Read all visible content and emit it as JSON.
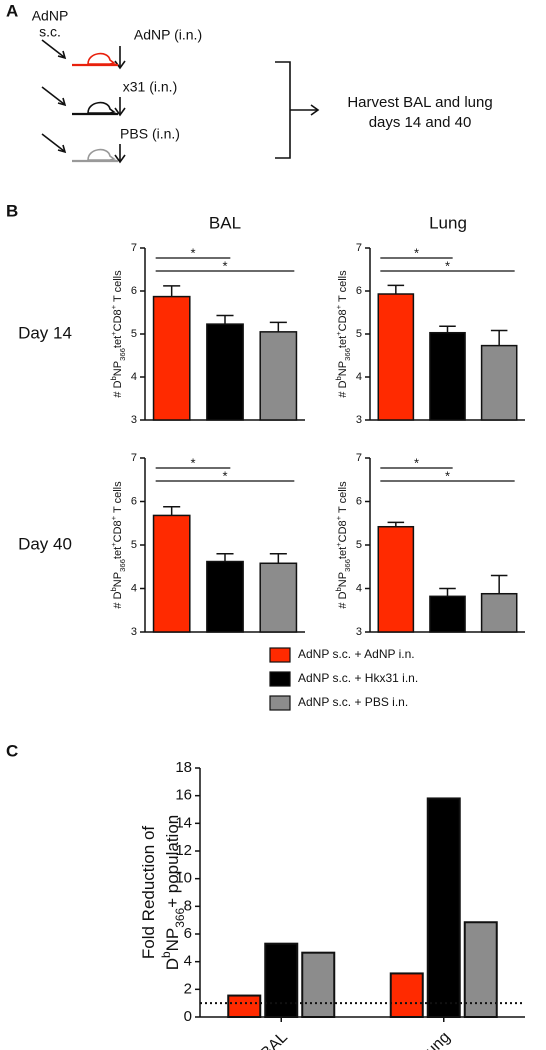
{
  "panel_labels": [
    "A",
    "B",
    "C"
  ],
  "panel_a": {
    "injection": [
      "AdNP",
      "s.c."
    ],
    "challenges": [
      "AdNP (i.n.)",
      "x31 (i.n.)",
      "PBS (i.n.)"
    ],
    "outcome": [
      "Harvest BAL and lung",
      "days 14 and 40"
    ]
  },
  "panel_b": {
    "columns": [
      "BAL",
      "Lung"
    ],
    "rows": [
      "Day 14",
      "Day 40"
    ]
  },
  "chart_data": [
    {
      "type": "bar",
      "categories": [
        null,
        null,
        null
      ],
      "values": [
        5.87,
        5.23,
        5.05
      ],
      "errors": [
        0.25,
        0.2,
        0.22
      ],
      "colors": [
        "#ff2a00",
        "#000000",
        "#8c8c8c"
      ],
      "ylim": [
        3,
        7
      ],
      "yticks": [
        3,
        4,
        5,
        6,
        7
      ],
      "ylabel_parts": [
        "# D",
        "b",
        "NP",
        "366",
        "tet",
        "+",
        "CD8",
        "+",
        " T cells"
      ],
      "annotations": [
        "*",
        "*"
      ]
    },
    {
      "type": "bar",
      "categories": [
        null,
        null,
        null
      ],
      "values": [
        5.93,
        5.03,
        4.73
      ],
      "errors": [
        0.2,
        0.15,
        0.35
      ],
      "colors": [
        "#ff2a00",
        "#000000",
        "#8c8c8c"
      ],
      "ylim": [
        3,
        7
      ],
      "yticks": [
        3,
        4,
        5,
        6,
        7
      ],
      "ylabel_parts": [
        "# D",
        "b",
        "NP",
        "366",
        "tet",
        "+",
        "CD8",
        "+",
        " T cells"
      ],
      "annotations": [
        "*",
        "*"
      ]
    },
    {
      "type": "bar",
      "categories": [
        null,
        null,
        null
      ],
      "values": [
        5.68,
        4.62,
        4.58
      ],
      "errors": [
        0.2,
        0.18,
        0.22
      ],
      "colors": [
        "#ff2a00",
        "#000000",
        "#8c8c8c"
      ],
      "ylim": [
        3,
        7
      ],
      "yticks": [
        3,
        4,
        5,
        6,
        7
      ],
      "ylabel_parts": [
        "# D",
        "b",
        "NP",
        "366",
        "tet",
        "+",
        "CD8",
        "+",
        " T cells"
      ],
      "annotations": [
        "*",
        "*"
      ]
    },
    {
      "type": "bar",
      "categories": [
        null,
        null,
        null
      ],
      "values": [
        5.42,
        3.82,
        3.88
      ],
      "errors": [
        0.1,
        0.18,
        0.42
      ],
      "colors": [
        "#ff2a00",
        "#000000",
        "#8c8c8c"
      ],
      "ylim": [
        3,
        7
      ],
      "yticks": [
        3,
        4,
        5,
        6,
        7
      ],
      "ylabel_parts": [
        "# D",
        "b",
        "NP",
        "366",
        "tet",
        "+",
        "CD8",
        "+",
        " T cells"
      ],
      "annotations": [
        "*",
        "*"
      ]
    },
    {
      "type": "grouped_bar",
      "categories": [
        "BAL",
        "Lung"
      ],
      "series": [
        {
          "name": "AdNP s.c. + AdNP i.n.",
          "color": "#ff2a00",
          "values": [
            1.55,
            3.15
          ]
        },
        {
          "name": "AdNP s.c. + Hkx31 i.n.",
          "color": "#000000",
          "values": [
            5.3,
            15.8
          ]
        },
        {
          "name": "AdNP s.c. + PBS i.n.",
          "color": "#8c8c8c",
          "values": [
            4.65,
            6.85
          ]
        }
      ],
      "ylim": [
        0,
        18
      ],
      "yticks": [
        0,
        2,
        4,
        6,
        8,
        10,
        12,
        14,
        16,
        18
      ],
      "reference_line": 1,
      "ylabel_lines": [
        [
          "Fold Reduction of"
        ],
        [
          "D",
          "b",
          "NP",
          "366",
          "+ population"
        ]
      ]
    }
  ]
}
